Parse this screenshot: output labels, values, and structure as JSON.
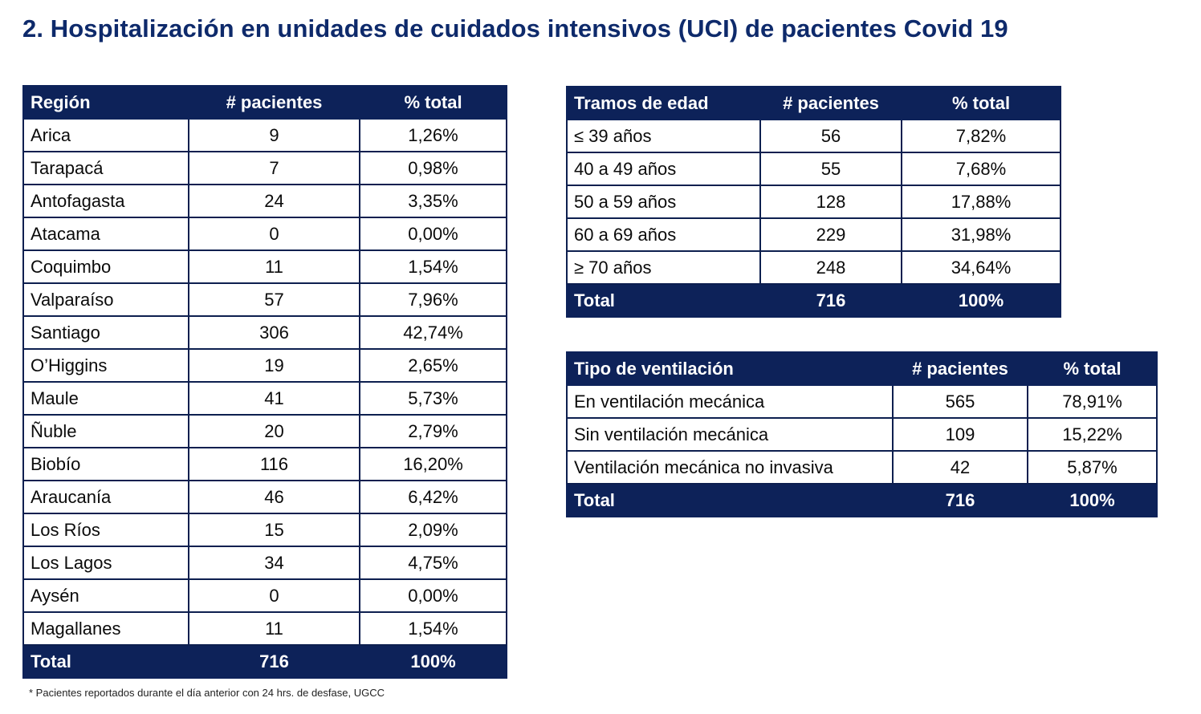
{
  "title": "2. Hospitalización en unidades de cuidados intensivos (UCI) de pacientes Covid 19",
  "colors": {
    "title": "#0e2a6b",
    "header_bg": "#0d2259",
    "header_text": "#ffffff",
    "border": "#0d1f4f"
  },
  "region_table": {
    "headers": [
      "Región",
      "# pacientes",
      "% total"
    ],
    "rows": [
      [
        "Arica",
        "9",
        "1,26%"
      ],
      [
        "Tarapacá",
        "7",
        "0,98%"
      ],
      [
        "Antofagasta",
        "24",
        "3,35%"
      ],
      [
        "Atacama",
        "0",
        "0,00%"
      ],
      [
        "Coquimbo",
        "11",
        "1,54%"
      ],
      [
        "Valparaíso",
        "57",
        "7,96%"
      ],
      [
        "Santiago",
        "306",
        "42,74%"
      ],
      [
        "O’Higgins",
        "19",
        "2,65%"
      ],
      [
        "Maule",
        "41",
        "5,73%"
      ],
      [
        "Ñuble",
        "20",
        "2,79%"
      ],
      [
        "Biobío",
        "116",
        "16,20%"
      ],
      [
        "Araucanía",
        "46",
        "6,42%"
      ],
      [
        "Los Ríos",
        "15",
        "2,09%"
      ],
      [
        "Los Lagos",
        "34",
        "4,75%"
      ],
      [
        "Aysén",
        "0",
        "0,00%"
      ],
      [
        "Magallanes",
        "11",
        "1,54%"
      ]
    ],
    "total": [
      "Total",
      "716",
      "100%"
    ]
  },
  "age_table": {
    "headers": [
      "Tramos de edad",
      "# pacientes",
      "% total"
    ],
    "rows": [
      [
        "≤ 39 años",
        "56",
        "7,82%"
      ],
      [
        "40 a 49 años",
        "55",
        "7,68%"
      ],
      [
        "50 a 59 años",
        "128",
        "17,88%"
      ],
      [
        "60 a 69 años",
        "229",
        "31,98%"
      ],
      [
        "≥ 70 años",
        "248",
        "34,64%"
      ]
    ],
    "total": [
      "Total",
      "716",
      "100%"
    ]
  },
  "vent_table": {
    "headers": [
      "Tipo de ventilación",
      "# pacientes",
      "% total"
    ],
    "rows": [
      [
        "En ventilación mecánica",
        "565",
        "78,91%"
      ],
      [
        "Sin ventilación mecánica",
        "109",
        "15,22%"
      ],
      [
        "Ventilación mecánica no invasiva",
        "42",
        "5,87%"
      ]
    ],
    "total": [
      "Total",
      "716",
      "100%"
    ]
  },
  "footnote": "* Pacientes reportados durante el día anterior con 24 hrs. de desfase, UGCC"
}
